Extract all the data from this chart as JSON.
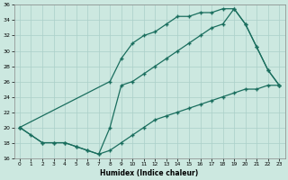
{
  "xlabel": "Humidex (Indice chaleur)",
  "background_color": "#cce8e0",
  "grid_color": "#aacfc8",
  "line_color": "#1a6e5e",
  "xlim": [
    -0.5,
    23.5
  ],
  "ylim": [
    16,
    36
  ],
  "xticks": [
    0,
    1,
    2,
    3,
    4,
    5,
    6,
    7,
    8,
    9,
    10,
    11,
    12,
    13,
    14,
    15,
    16,
    17,
    18,
    19,
    20,
    21,
    22,
    23
  ],
  "yticks": [
    16,
    18,
    20,
    22,
    24,
    26,
    28,
    30,
    32,
    34,
    36
  ],
  "line1_x": [
    0,
    1,
    2,
    3,
    4,
    5,
    6,
    7,
    8,
    9,
    10,
    11,
    12,
    13,
    14,
    15,
    16,
    17,
    18,
    19,
    20,
    21,
    22,
    23
  ],
  "line1_y": [
    20,
    19,
    18,
    18,
    18,
    17.5,
    17,
    16.5,
    17,
    18,
    19,
    20,
    21,
    21.5,
    22,
    22.5,
    23,
    23.5,
    24,
    24.5,
    25,
    25,
    25.5,
    25.5
  ],
  "line2_x": [
    0,
    2,
    3,
    4,
    5,
    6,
    7,
    8,
    9,
    10,
    11,
    12,
    13,
    14,
    15,
    16,
    17,
    18,
    19,
    20,
    21,
    22,
    23
  ],
  "line2_y": [
    20,
    18,
    18,
    18,
    17.5,
    17,
    16.5,
    20,
    25.5,
    26,
    27,
    28,
    29,
    30,
    31,
    32,
    33,
    33.5,
    35.5,
    33.5,
    30.5,
    27.5,
    25.5
  ],
  "line3_x": [
    0,
    8,
    9,
    10,
    11,
    12,
    13,
    14,
    15,
    16,
    17,
    18,
    19,
    20,
    21,
    22,
    23
  ],
  "line3_y": [
    20,
    26,
    29,
    31,
    32,
    32.5,
    33.5,
    34.5,
    34.5,
    35,
    35,
    35.5,
    35.5,
    33.5,
    30.5,
    27.5,
    25.5
  ]
}
